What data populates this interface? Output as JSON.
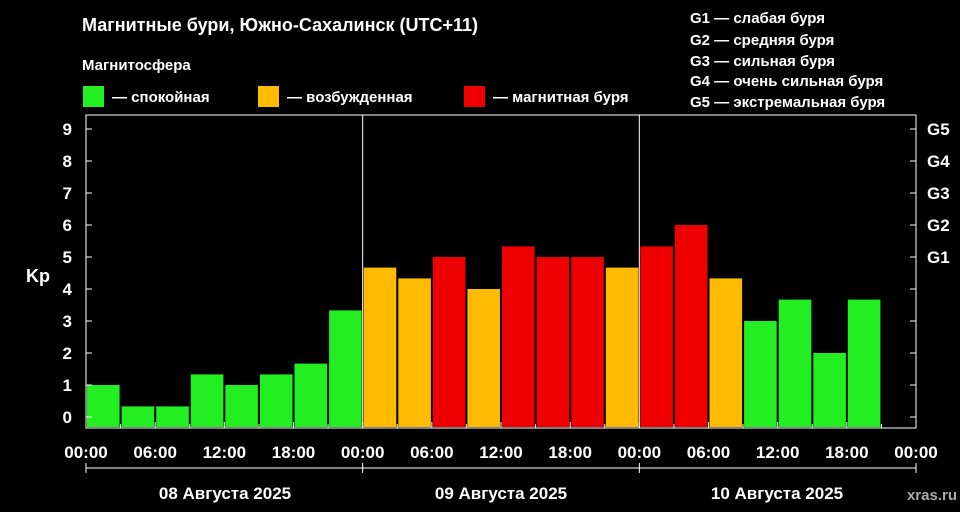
{
  "header": {
    "title": "Магнитные бури, Южно-Сахалинск (UTC+11)",
    "legend_title": "Магнитосфера",
    "legend": [
      {
        "label": "— спокойная",
        "color": "#22ee22"
      },
      {
        "label": "— возбужденная",
        "color": "#ffbb00"
      },
      {
        "label": "— магнитная буря",
        "color": "#ee0000"
      }
    ]
  },
  "g_legend": [
    "G1 — слабая буря",
    "G2 — средняя буря",
    "G3 — сильная буря",
    "G4 — очень сильная буря",
    "G5 — экстремальная буря"
  ],
  "watermark": "xras.ru",
  "chart_data": {
    "type": "bar",
    "ylabel": "Kp",
    "ylim": [
      0,
      9
    ],
    "yticks": [
      "0",
      "1",
      "2",
      "3",
      "4",
      "5",
      "6",
      "7",
      "8",
      "9"
    ],
    "right_ticks": [
      {
        "label": "G1",
        "kp": 5
      },
      {
        "label": "G2",
        "kp": 6
      },
      {
        "label": "G3",
        "kp": 7
      },
      {
        "label": "G4",
        "kp": 8
      },
      {
        "label": "G5",
        "kp": 9
      }
    ],
    "xticks": [
      "00:00",
      "06:00",
      "12:00",
      "18:00",
      "00:00",
      "06:00",
      "12:00",
      "18:00",
      "00:00",
      "06:00",
      "12:00",
      "18:00",
      "00:00"
    ],
    "days": [
      "08 Августа 2025",
      "09 Августа 2025",
      "10 Августа 2025"
    ],
    "series": [
      {
        "values": [
          1.0,
          0.33,
          0.33,
          1.33,
          1.0,
          1.33,
          1.67,
          3.33,
          4.67,
          4.33,
          5.0,
          4.0,
          5.33,
          5.0,
          5.0,
          4.67,
          5.33,
          6.0,
          4.33,
          3.0,
          3.67,
          2.0,
          3.67
        ]
      }
    ],
    "colors": {
      "quiet": "#22ee22",
      "active": "#ffbb00",
      "storm": "#ee0000"
    }
  }
}
